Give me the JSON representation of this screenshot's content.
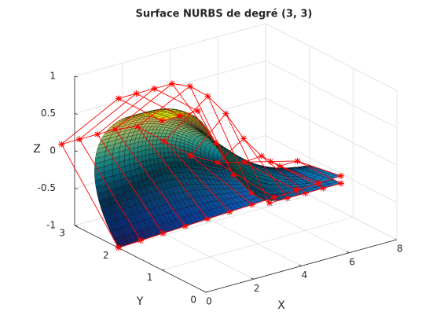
{
  "chart_data": {
    "type": "nurbs-surface",
    "title": "Surface NURBS de degré (3, 3)",
    "xlabel": "X",
    "ylabel": "Y",
    "zlabel": "Z",
    "xlim": [
      0,
      8
    ],
    "ylim": [
      0,
      3
    ],
    "zlim": [
      -1,
      1
    ],
    "xticks": [
      0,
      2,
      4,
      6,
      8
    ],
    "yticks": [
      0,
      1,
      2,
      3
    ],
    "zticks": [
      -1,
      -0.5,
      0,
      0.5,
      1
    ],
    "grid": true,
    "colormap": "parula",
    "net_color": "#ff0000",
    "degree": [
      3,
      3
    ],
    "control_points": [
      [
        [
          0,
          2,
          -1
        ],
        [
          0,
          3.3,
          0
        ],
        [
          0,
          2,
          1
        ],
        [
          0,
          1,
          1
        ]
      ],
      [
        [
          0.75,
          1.9,
          -0.94
        ],
        [
          0.75,
          3.3,
          0
        ],
        [
          0.75,
          2,
          1
        ],
        [
          0.75,
          1,
          1
        ]
      ],
      [
        [
          1.5,
          1.8,
          -0.88
        ],
        [
          1.5,
          3.3,
          0
        ],
        [
          1.5,
          2,
          1
        ],
        [
          1.5,
          1,
          1
        ]
      ],
      [
        [
          2.25,
          1.7,
          -0.82
        ],
        [
          2.25,
          3.3,
          0
        ],
        [
          2.25,
          2,
          1
        ],
        [
          2.25,
          1,
          0.5
        ]
      ],
      [
        [
          3,
          1.6,
          -0.76
        ],
        [
          3,
          3.2,
          0
        ],
        [
          3,
          2,
          0.9
        ],
        [
          3,
          1,
          0
        ]
      ],
      [
        [
          3.75,
          1.5,
          -0.7
        ],
        [
          3.75,
          3,
          -0.2
        ],
        [
          3.75,
          2,
          0.7
        ],
        [
          3.75,
          1,
          -0.3
        ]
      ],
      [
        [
          4.5,
          1.4,
          -0.64
        ],
        [
          4.5,
          2.8,
          -0.4
        ],
        [
          4.5,
          2,
          0.4
        ],
        [
          4.5,
          1,
          -0.5
        ]
      ],
      [
        [
          5.25,
          1.3,
          -0.58
        ],
        [
          5.25,
          2.6,
          -0.5
        ],
        [
          5.25,
          2,
          0
        ],
        [
          5.25,
          1,
          -0.5
        ]
      ],
      [
        [
          6,
          1.2,
          -0.52
        ],
        [
          6,
          2.4,
          -0.5
        ],
        [
          6,
          2,
          -0.3
        ],
        [
          6,
          1,
          -0.5
        ]
      ],
      [
        [
          6.75,
          1.1,
          -0.46
        ],
        [
          6.75,
          2.2,
          -0.5
        ],
        [
          6.75,
          2,
          -0.5
        ],
        [
          6.75,
          1,
          -0.5
        ]
      ],
      [
        [
          7.5,
          1,
          -0.4
        ],
        [
          7.5,
          2,
          -0.5
        ],
        [
          7.5,
          2,
          -0.5
        ],
        [
          7.5,
          1,
          -0.5
        ]
      ]
    ]
  }
}
